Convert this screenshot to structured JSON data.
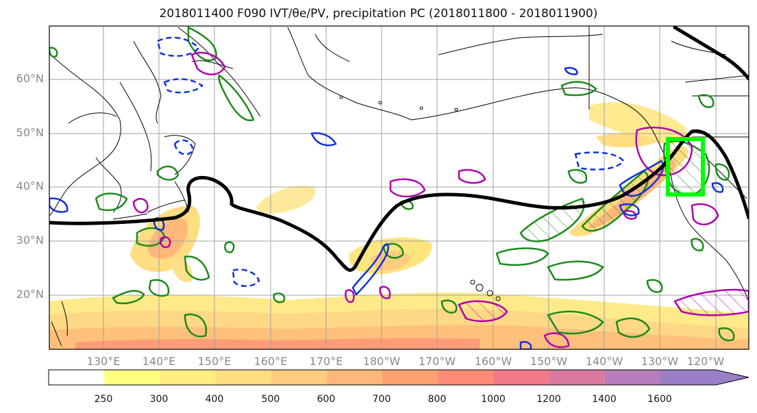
{
  "title": "2018011400 F090 IVT/θe/PV, precipitation PC (2018011800 - 2018011900)",
  "map": {
    "lat_labels": [
      "60°N",
      "50°N",
      "40°N",
      "30°N",
      "20°N"
    ],
    "lon_labels": [
      "130°E",
      "140°E",
      "150°E",
      "160°E",
      "170°E",
      "180°W",
      "170°W",
      "160°W",
      "150°W",
      "140°W",
      "130°W",
      "120°W"
    ],
    "colors": {
      "theta_e_contour": "#000000",
      "box": "#00ff00",
      "precip_contour": "#1a8a1a",
      "pv_contour": "#b000b0",
      "ivt_contour": "#1030e0"
    }
  },
  "colorbar": {
    "ticks": [
      "250",
      "300",
      "400",
      "500",
      "600",
      "700",
      "800",
      "1000",
      "1200",
      "1400",
      "1600"
    ],
    "colors": [
      "#ffffff",
      "#ffff80",
      "#ffee80",
      "#ffdd80",
      "#ffcc80",
      "#ffb77a",
      "#ffa070",
      "#ff8a75",
      "#f07a85",
      "#d87aa0",
      "#b67dbd",
      "#9a7ec6"
    ]
  }
}
